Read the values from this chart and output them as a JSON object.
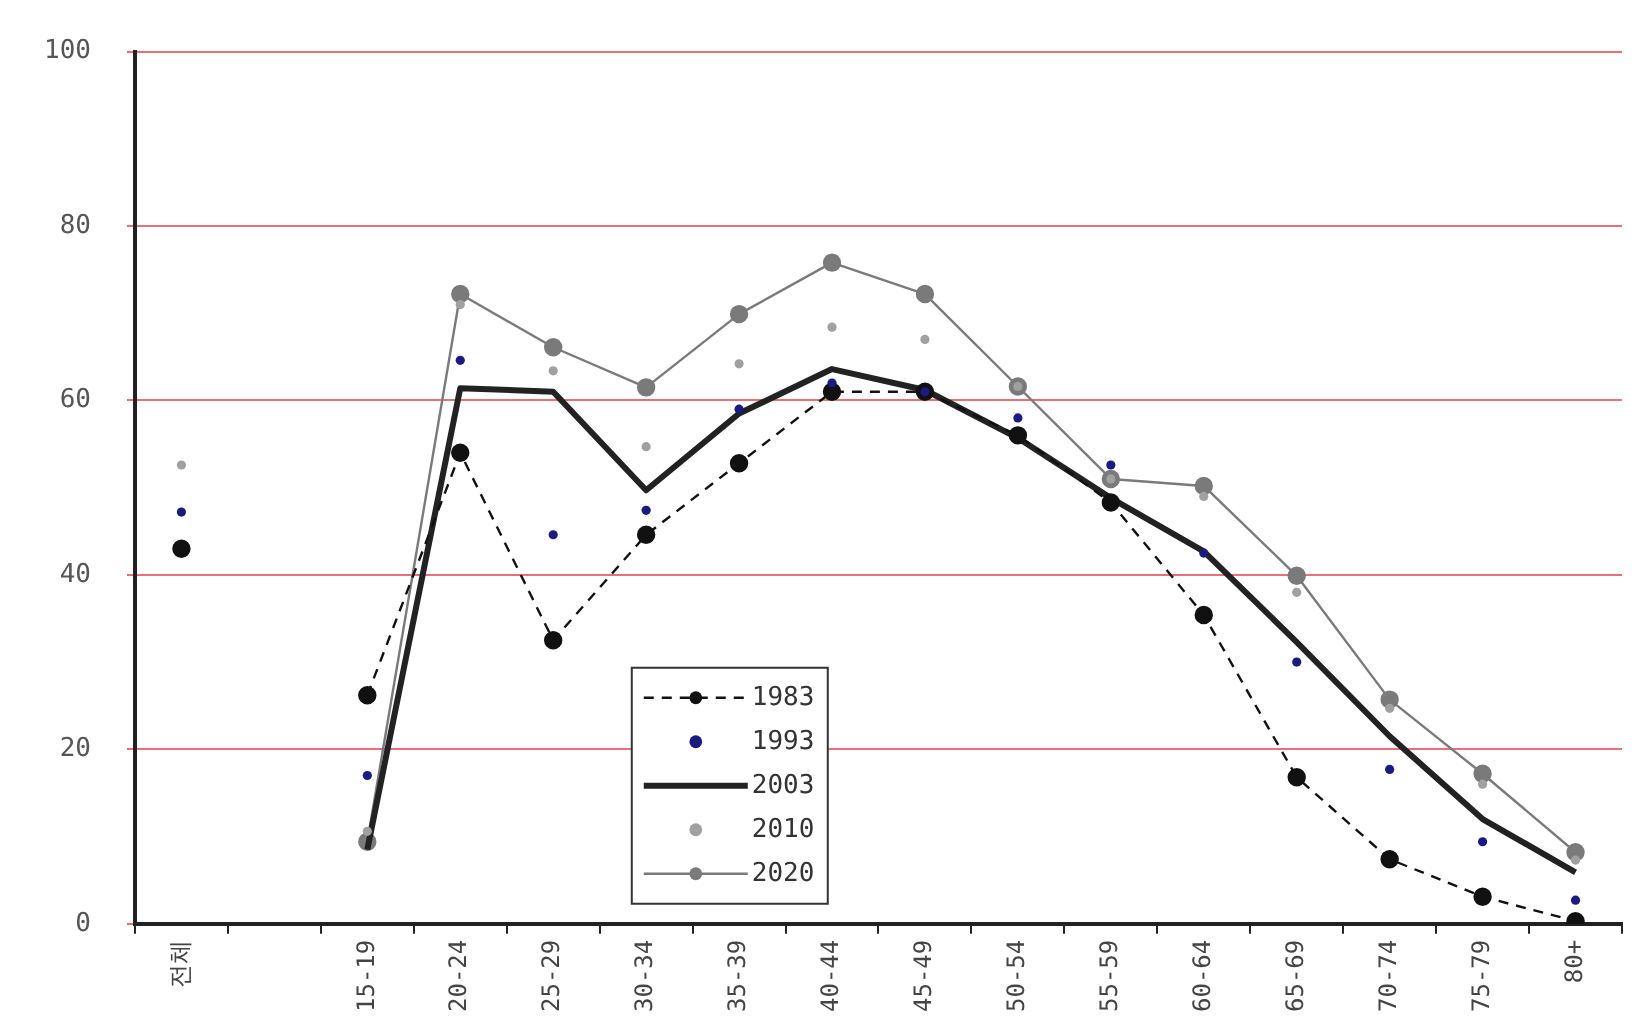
{
  "chart_data": {
    "type": "line",
    "categories": [
      "전체",
      null,
      "15-19",
      "20-24",
      "25-29",
      "30-34",
      "35-39",
      "40-44",
      "45-49",
      "50-54",
      "55-59",
      "60-64",
      "65-69",
      "70-74",
      "75-79",
      "80+"
    ],
    "series": [
      {
        "name": "1983",
        "type": "line",
        "line_style": "dashed",
        "marker": "circle",
        "color": "#111111",
        "values": [
          43,
          null,
          26.2,
          54,
          32.5,
          44.6,
          52.8,
          61,
          61,
          56,
          48.3,
          35.4,
          16.8,
          7.4,
          3.1,
          0.3
        ]
      },
      {
        "name": "1993",
        "type": "scatter",
        "marker": "circle",
        "color": "#1a1a80",
        "values": [
          47.2,
          null,
          17,
          64.6,
          44.6,
          47.4,
          59,
          62,
          61,
          58,
          52.6,
          42.5,
          30,
          17.7,
          9.4,
          2.7
        ]
      },
      {
        "name": "2003",
        "type": "line",
        "line_style": "solid",
        "marker": "none",
        "color": "#222222",
        "values": [
          null,
          null,
          8.5,
          61.4,
          61,
          49.7,
          58.5,
          63.6,
          61.2,
          55.7,
          48.8,
          42.7,
          32.3,
          21.5,
          12,
          5.9
        ]
      },
      {
        "name": "2010",
        "type": "scatter",
        "marker": "circle",
        "color": "#a0a0a0",
        "values": [
          52.6,
          null,
          10.6,
          71,
          63.4,
          54.7,
          64.2,
          68.4,
          67,
          61.6,
          51,
          49,
          38,
          24.7,
          16,
          7.3
        ]
      },
      {
        "name": "2020",
        "type": "line",
        "line_style": "solid",
        "marker": "circle",
        "color": "#7a7a7a",
        "values": [
          null,
          null,
          9.4,
          72.2,
          66.1,
          61.5,
          69.9,
          75.8,
          72.2,
          61.6,
          51,
          50.2,
          39.9,
          25.7,
          17.2,
          8.2
        ]
      }
    ],
    "ylim": [
      0,
      100
    ],
    "yticks": [
      0,
      20,
      40,
      60,
      80,
      100
    ],
    "grid": "y",
    "legend": "bottom"
  }
}
